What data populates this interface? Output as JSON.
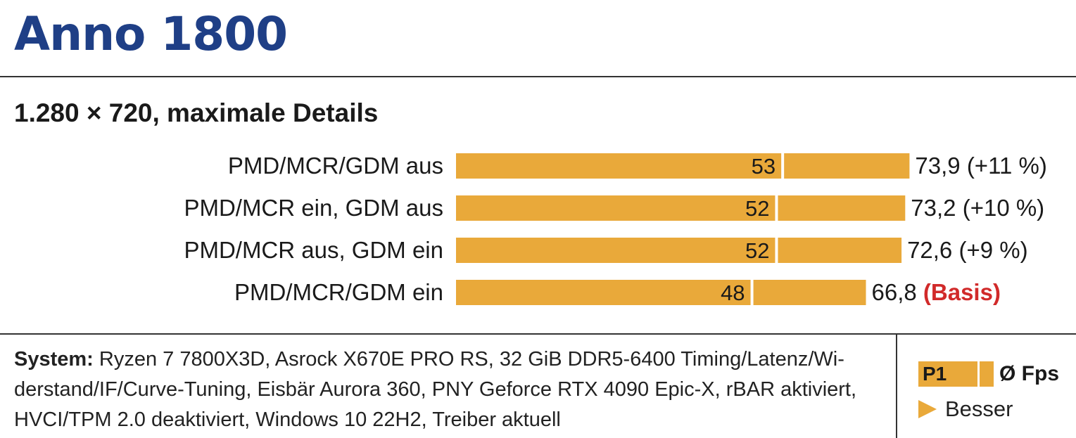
{
  "title": "Anno 1800",
  "subtitle": "1.280 × 720, maximale Details",
  "colors": {
    "bar": "#e9a93a",
    "title": "#1f3f86",
    "basis": "#d12a2a"
  },
  "chart_data": {
    "type": "bar",
    "orientation": "horizontal",
    "title": "Anno 1800",
    "subtitle": "1.280 × 720, maximale Details",
    "categories": [
      "PMD/MCR/GDM aus",
      "PMD/MCR ein, GDM aus",
      "PMD/MCR aus, GDM ein",
      "PMD/MCR/GDM ein"
    ],
    "series": [
      {
        "name": "P1",
        "values": [
          53,
          52,
          52,
          48
        ]
      },
      {
        "name": "Ø Fps",
        "values": [
          73.9,
          73.2,
          72.6,
          66.8
        ]
      }
    ],
    "p1_labels": [
      "53",
      "52",
      "52",
      "48"
    ],
    "avg_labels": [
      "73,9",
      "73,2",
      "72,6",
      "66,8"
    ],
    "pct_labels": [
      "(+11 %)",
      "(+10 %)",
      "(+9 %)",
      "(Basis)"
    ],
    "grid": false
  },
  "footer": {
    "system_label": "System:",
    "system_text": "Ryzen 7 7800X3D, Asrock X670E PRO RS, 32 GiB DDR5-6400 Timing/Latenz/Wi­derstand/IF/Curve-Tuning, Eisbär Aurora 360, PNY Geforce RTX 4090 Epic-X, rBAR aktiviert, HVCI/TPM 2.0 deaktiviert, Windows 10 22H2, Treiber aktuell"
  },
  "legend": {
    "p1": "P1",
    "avg": "Ø Fps",
    "better": "Besser"
  }
}
